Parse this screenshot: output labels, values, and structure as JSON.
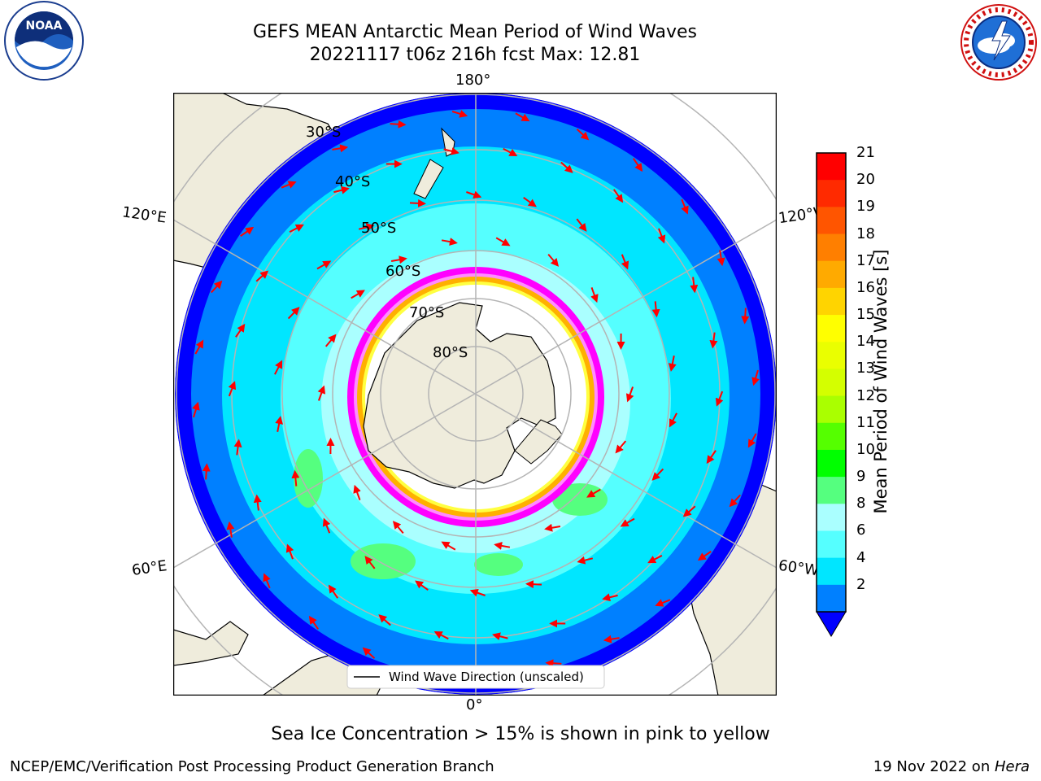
{
  "title": {
    "line1": "GEFS MEAN Antarctic Mean Period of Wind Waves",
    "line2": "20221117 t06z 216h fcst   Max: 12.81"
  },
  "logos": {
    "left": {
      "text": "NOAA",
      "ring_text": "NATIONAL OCEANIC AND ATMOSPHERIC ADMINISTRATION · U.S. DEPARTMENT OF COMMERCE",
      "icon": "noaa-logo"
    },
    "right": {
      "ring_text": "NATIONAL WEATHER SERVICE",
      "icon": "nws-logo"
    }
  },
  "map": {
    "projection": "south-polar-stereographic",
    "longitude_labels": {
      "top": "180°",
      "bottom": "0°",
      "left_upper": "120°E",
      "left_lower": "60°E",
      "right_upper": "120°W",
      "right_lower": "60°W"
    },
    "latitude_labels": [
      "30°S",
      "40°S",
      "50°S",
      "60°S",
      "70°S",
      "80°S"
    ],
    "legend_label": "Wind Wave Direction (unscaled)",
    "colors": {
      "land": "#efecdc",
      "sea_ice": "#ffffff",
      "ice_edge": [
        "#ff00ff",
        "#ff8cff",
        "#ffb000",
        "#ffff40"
      ],
      "arrow": "#ff0000",
      "grid": "#b4b4b4"
    }
  },
  "colorbar": {
    "label": "Mean Period of Wind Waves [s]",
    "ticks": [
      "21",
      "20",
      "19",
      "18",
      "17",
      "16",
      "15",
      "14",
      "13",
      "12",
      "11",
      "10",
      "9",
      "8",
      "6",
      "4",
      "2"
    ],
    "colors": [
      "#ff0000",
      "#ff2a00",
      "#ff5500",
      "#ff7f00",
      "#ffaa00",
      "#ffd400",
      "#ffff00",
      "#eaff00",
      "#d4ff00",
      "#aaff00",
      "#55ff00",
      "#00ff00",
      "#55ff7f",
      "#aaffff",
      "#55ffff",
      "#00e6ff",
      "#0080ff"
    ],
    "extend_color": "#0000ff"
  },
  "captions": {
    "ice_note": "Sea Ice Concentration > 15% is shown in pink to yellow",
    "credit": "NCEP/EMC/Verification Post Processing Product Generation Branch",
    "date_prefix": "19 Nov 2022 on ",
    "date_host": "Hera"
  }
}
